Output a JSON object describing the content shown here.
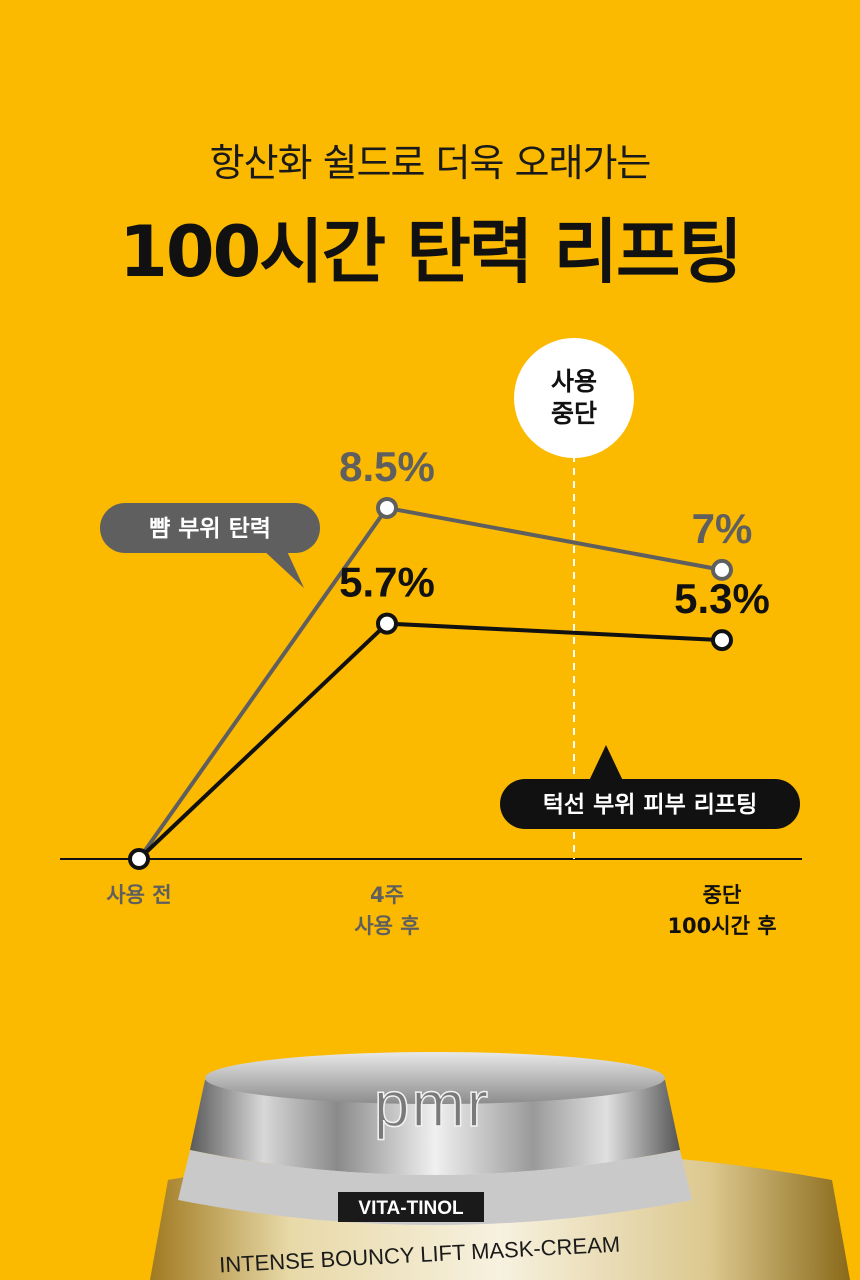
{
  "header": {
    "subtitle": "항산화 쉴드로 더욱 오래가는",
    "title": "100시간 탄력 리프팅"
  },
  "chart_data": {
    "type": "line",
    "title": "100시간 탄력 리프팅",
    "categories": [
      [
        "사용 전"
      ],
      [
        "4주",
        "사용 후"
      ],
      [
        "중단",
        "100시간 후"
      ]
    ],
    "series": [
      {
        "name": "뺨 부위 탄력",
        "values": [
          0,
          8.5,
          7
        ],
        "labels": [
          "",
          "8.5%",
          "7%"
        ],
        "color": "#5f5f5f"
      },
      {
        "name": "턱선 부위 피부 리프팅",
        "values": [
          0,
          5.7,
          5.3
        ],
        "labels": [
          "",
          "5.7%",
          "5.3%"
        ],
        "color": "#111111"
      }
    ],
    "annotation": {
      "text": [
        "사용",
        "중단"
      ]
    },
    "ylim": [
      0,
      10
    ],
    "grid": false
  },
  "product": {
    "logo": "pmr",
    "badge": "VITA-TINOL",
    "name": "INTENSE BOUNCY LIFT MASK-CREAM"
  },
  "colors": {
    "background": "#fbb900",
    "gray_series": "#5f5f5f",
    "black_series": "#111111"
  }
}
